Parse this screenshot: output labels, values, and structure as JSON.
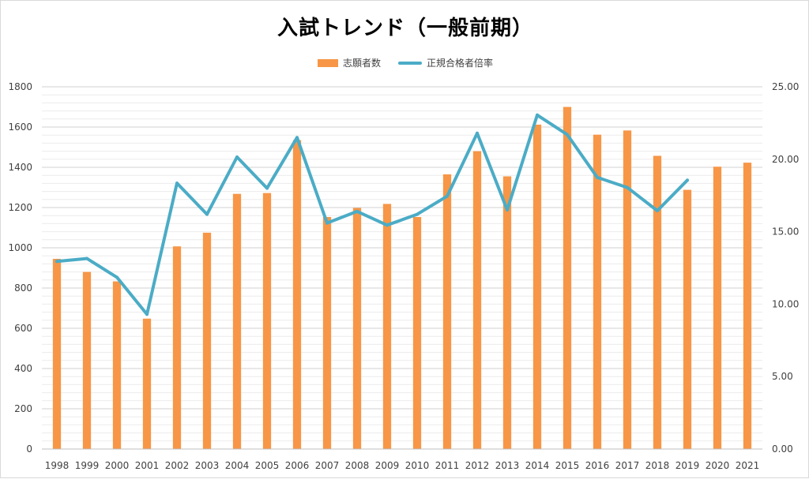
{
  "chart_data": {
    "type": "bar",
    "title": "入試トレンド（一般前期）",
    "categories": [
      "1998",
      "1999",
      "2000",
      "2001",
      "2002",
      "2003",
      "2004",
      "2005",
      "2006",
      "2007",
      "2008",
      "2009",
      "2010",
      "2011",
      "2012",
      "2013",
      "2014",
      "2015",
      "2016",
      "2017",
      "2018",
      "2019",
      "2020",
      "2021"
    ],
    "series": [
      {
        "name": "志願者数",
        "type": "bar",
        "axis": "left",
        "color": "#f79646",
        "values": [
          945,
          880,
          833,
          648,
          1007,
          1075,
          1268,
          1272,
          1535,
          1153,
          1198,
          1218,
          1153,
          1365,
          1480,
          1355,
          1612,
          1700,
          1562,
          1583,
          1457,
          1288,
          1403,
          1423
        ]
      },
      {
        "name": "正規合格者倍率",
        "type": "line",
        "axis": "right",
        "color": "#4bacc6",
        "values": [
          12.95,
          13.15,
          11.85,
          9.3,
          18.35,
          16.2,
          20.15,
          18.0,
          21.5,
          15.6,
          16.4,
          15.45,
          16.2,
          17.45,
          21.8,
          16.5,
          23.05,
          21.7,
          18.75,
          18.05,
          16.45,
          18.55,
          null,
          null
        ]
      }
    ],
    "y_left": {
      "min": 0,
      "max": 1800,
      "step": 200,
      "ticks": [
        "0",
        "200",
        "400",
        "600",
        "800",
        "1000",
        "1200",
        "1400",
        "1600",
        "1800"
      ]
    },
    "y_right": {
      "min": 0,
      "max": 25,
      "step": 5,
      "ticks": [
        "0.00",
        "5.00",
        "10.00",
        "15.00",
        "20.00",
        "25.00"
      ]
    },
    "grid": true,
    "legend": "top-center"
  }
}
